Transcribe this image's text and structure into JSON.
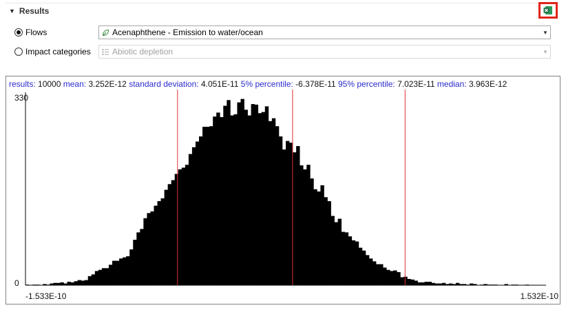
{
  "section": {
    "title": "Results"
  },
  "export": {
    "icon": "excel-export-icon",
    "highlight_color": "#e2231a"
  },
  "flows": {
    "label": "Flows",
    "selected": true,
    "value": "Acenaphthene - Emission to water/ocean",
    "icon": "leaf-flow-icon"
  },
  "impact": {
    "label": "Impact categories",
    "selected": false,
    "value": "Abiotic depletion",
    "icon": "impact-category-icon",
    "enabled": false
  },
  "stats": {
    "results_label": "results:",
    "results_value": "10000",
    "mean_label": "mean:",
    "mean_value": "3.252E-12",
    "std_label": "standard deviation:",
    "std_value": "4.051E-11",
    "p5_label": "5% percentile:",
    "p5_value": "-6.378E-11",
    "p95_label": "95% percentile:",
    "p95_value": "7.023E-11",
    "median_label": "median:",
    "median_value": "3.963E-12"
  },
  "chart_data": {
    "type": "bar",
    "y_tick_labels": [
      "330",
      "0"
    ],
    "x_tick_labels": [
      "-1.533E-10",
      "1.532E-10"
    ],
    "xlim": [
      -1.533e-10,
      1.532e-10
    ],
    "ylim": [
      0,
      330
    ],
    "markers": [
      -6.378e-11,
      3.963e-12,
      7.023e-11
    ],
    "marker_color": "#e03030",
    "bar_color": "#000000",
    "values": [
      1,
      0,
      1,
      1,
      0,
      2,
      1,
      3,
      4,
      4,
      5,
      3,
      6,
      5,
      7,
      9,
      8,
      9,
      16,
      19,
      25,
      27,
      30,
      30,
      36,
      43,
      43,
      47,
      49,
      51,
      63,
      80,
      93,
      99,
      118,
      127,
      130,
      140,
      148,
      153,
      168,
      178,
      185,
      196,
      204,
      207,
      212,
      231,
      243,
      253,
      262,
      279,
      279,
      280,
      297,
      304,
      296,
      316,
      326,
      299,
      301,
      322,
      328,
      309,
      299,
      319,
      318,
      303,
      305,
      315,
      289,
      294,
      280,
      262,
      239,
      254,
      251,
      234,
      245,
      211,
      204,
      212,
      188,
      169,
      165,
      176,
      155,
      148,
      122,
      111,
      117,
      94,
      93,
      86,
      79,
      77,
      66,
      61,
      53,
      47,
      42,
      37,
      37,
      31,
      27,
      25,
      26,
      23,
      14,
      15,
      11,
      10,
      8,
      5,
      5,
      6,
      6,
      4,
      3,
      3,
      4,
      2,
      3,
      2,
      4,
      2,
      2,
      1,
      3,
      2,
      0,
      1,
      2,
      1,
      1,
      1,
      0,
      0,
      2,
      0,
      1,
      1,
      0,
      0,
      1,
      0,
      0,
      0,
      0,
      0
    ]
  }
}
